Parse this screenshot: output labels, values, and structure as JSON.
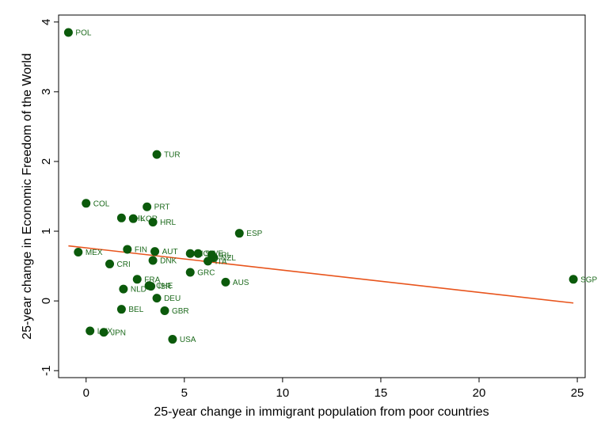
{
  "colors": {
    "marker": "#0b5a0b",
    "label": "#1e6b1e",
    "fit_line": "#e8541c",
    "axis": "#000000"
  },
  "chart_data": {
    "type": "scatter",
    "title": "",
    "xlabel": "25-year change in immigrant population from poor countries",
    "ylabel": "25-year change in Economic Freedom of the World",
    "xlim": [
      -1.4,
      25.4
    ],
    "ylim": [
      -1.1,
      4.1
    ],
    "xticks": [
      0,
      5,
      10,
      15,
      20,
      25
    ],
    "yticks": [
      -1,
      0,
      1,
      2,
      3,
      4
    ],
    "grid": false,
    "legend": "none",
    "fit_line": {
      "x": [
        -0.9,
        24.8
      ],
      "y": [
        0.79,
        -0.03
      ]
    },
    "points": [
      {
        "label": "POL",
        "x": -0.9,
        "y": 3.85
      },
      {
        "label": "TUR",
        "x": 3.6,
        "y": 2.1
      },
      {
        "label": "COL",
        "x": 0.0,
        "y": 1.4
      },
      {
        "label": "PRT",
        "x": 3.1,
        "y": 1.35
      },
      {
        "label": "CHL",
        "x": 1.8,
        "y": 1.19
      },
      {
        "label": "KOR",
        "x": 2.4,
        "y": 1.18
      },
      {
        "label": "HRL",
        "x": 3.4,
        "y": 1.13
      },
      {
        "label": "ESP",
        "x": 7.8,
        "y": 0.97
      },
      {
        "label": "FIN",
        "x": 2.1,
        "y": 0.74
      },
      {
        "label": "AUT",
        "x": 3.5,
        "y": 0.71
      },
      {
        "label": "MEX",
        "x": -0.4,
        "y": 0.7
      },
      {
        "label": "NOR",
        "x": 5.3,
        "y": 0.68
      },
      {
        "label": "SWE",
        "x": 5.7,
        "y": 0.68
      },
      {
        "label": "IRL",
        "x": 6.4,
        "y": 0.66
      },
      {
        "label": "NZL",
        "x": 6.5,
        "y": 0.62
      },
      {
        "label": "ITA",
        "x": 6.2,
        "y": 0.57
      },
      {
        "label": "DNK",
        "x": 3.4,
        "y": 0.58
      },
      {
        "label": "CRI",
        "x": 1.2,
        "y": 0.53
      },
      {
        "label": "GRC",
        "x": 5.3,
        "y": 0.41
      },
      {
        "label": "FRA",
        "x": 2.6,
        "y": 0.31
      },
      {
        "label": "AUS",
        "x": 7.1,
        "y": 0.27
      },
      {
        "label": "SGP",
        "x": 24.8,
        "y": 0.31
      },
      {
        "label": "CHE",
        "x": 3.2,
        "y": 0.22
      },
      {
        "label": "ISR",
        "x": 3.3,
        "y": 0.21
      },
      {
        "label": "NLD",
        "x": 1.9,
        "y": 0.17
      },
      {
        "label": "DEU",
        "x": 3.6,
        "y": 0.04
      },
      {
        "label": "BEL",
        "x": 1.8,
        "y": -0.12
      },
      {
        "label": "GBR",
        "x": 4.0,
        "y": -0.14
      },
      {
        "label": "LUX",
        "x": 0.2,
        "y": -0.43
      },
      {
        "label": "JPN",
        "x": 0.9,
        "y": -0.45
      },
      {
        "label": "USA",
        "x": 4.4,
        "y": -0.55
      }
    ]
  }
}
